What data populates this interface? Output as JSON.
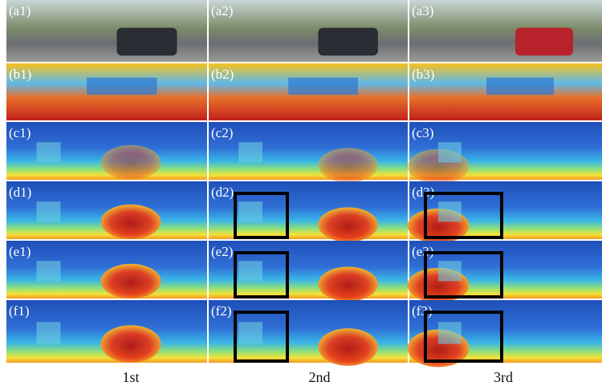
{
  "rows": [
    [
      "(a1)",
      "(a2)",
      "(a3)"
    ],
    [
      "(b1)",
      "(b2)",
      "(b3)"
    ],
    [
      "(c1)",
      "(c2)",
      "(c3)"
    ],
    [
      "(d1)",
      "(d2)",
      "(d3)"
    ],
    [
      "(e1)",
      "(e2)",
      "(e3)"
    ],
    [
      "(f1)",
      "(f2)",
      "(f3)"
    ]
  ],
  "columns": [
    "1st",
    "2nd",
    "3rd"
  ]
}
